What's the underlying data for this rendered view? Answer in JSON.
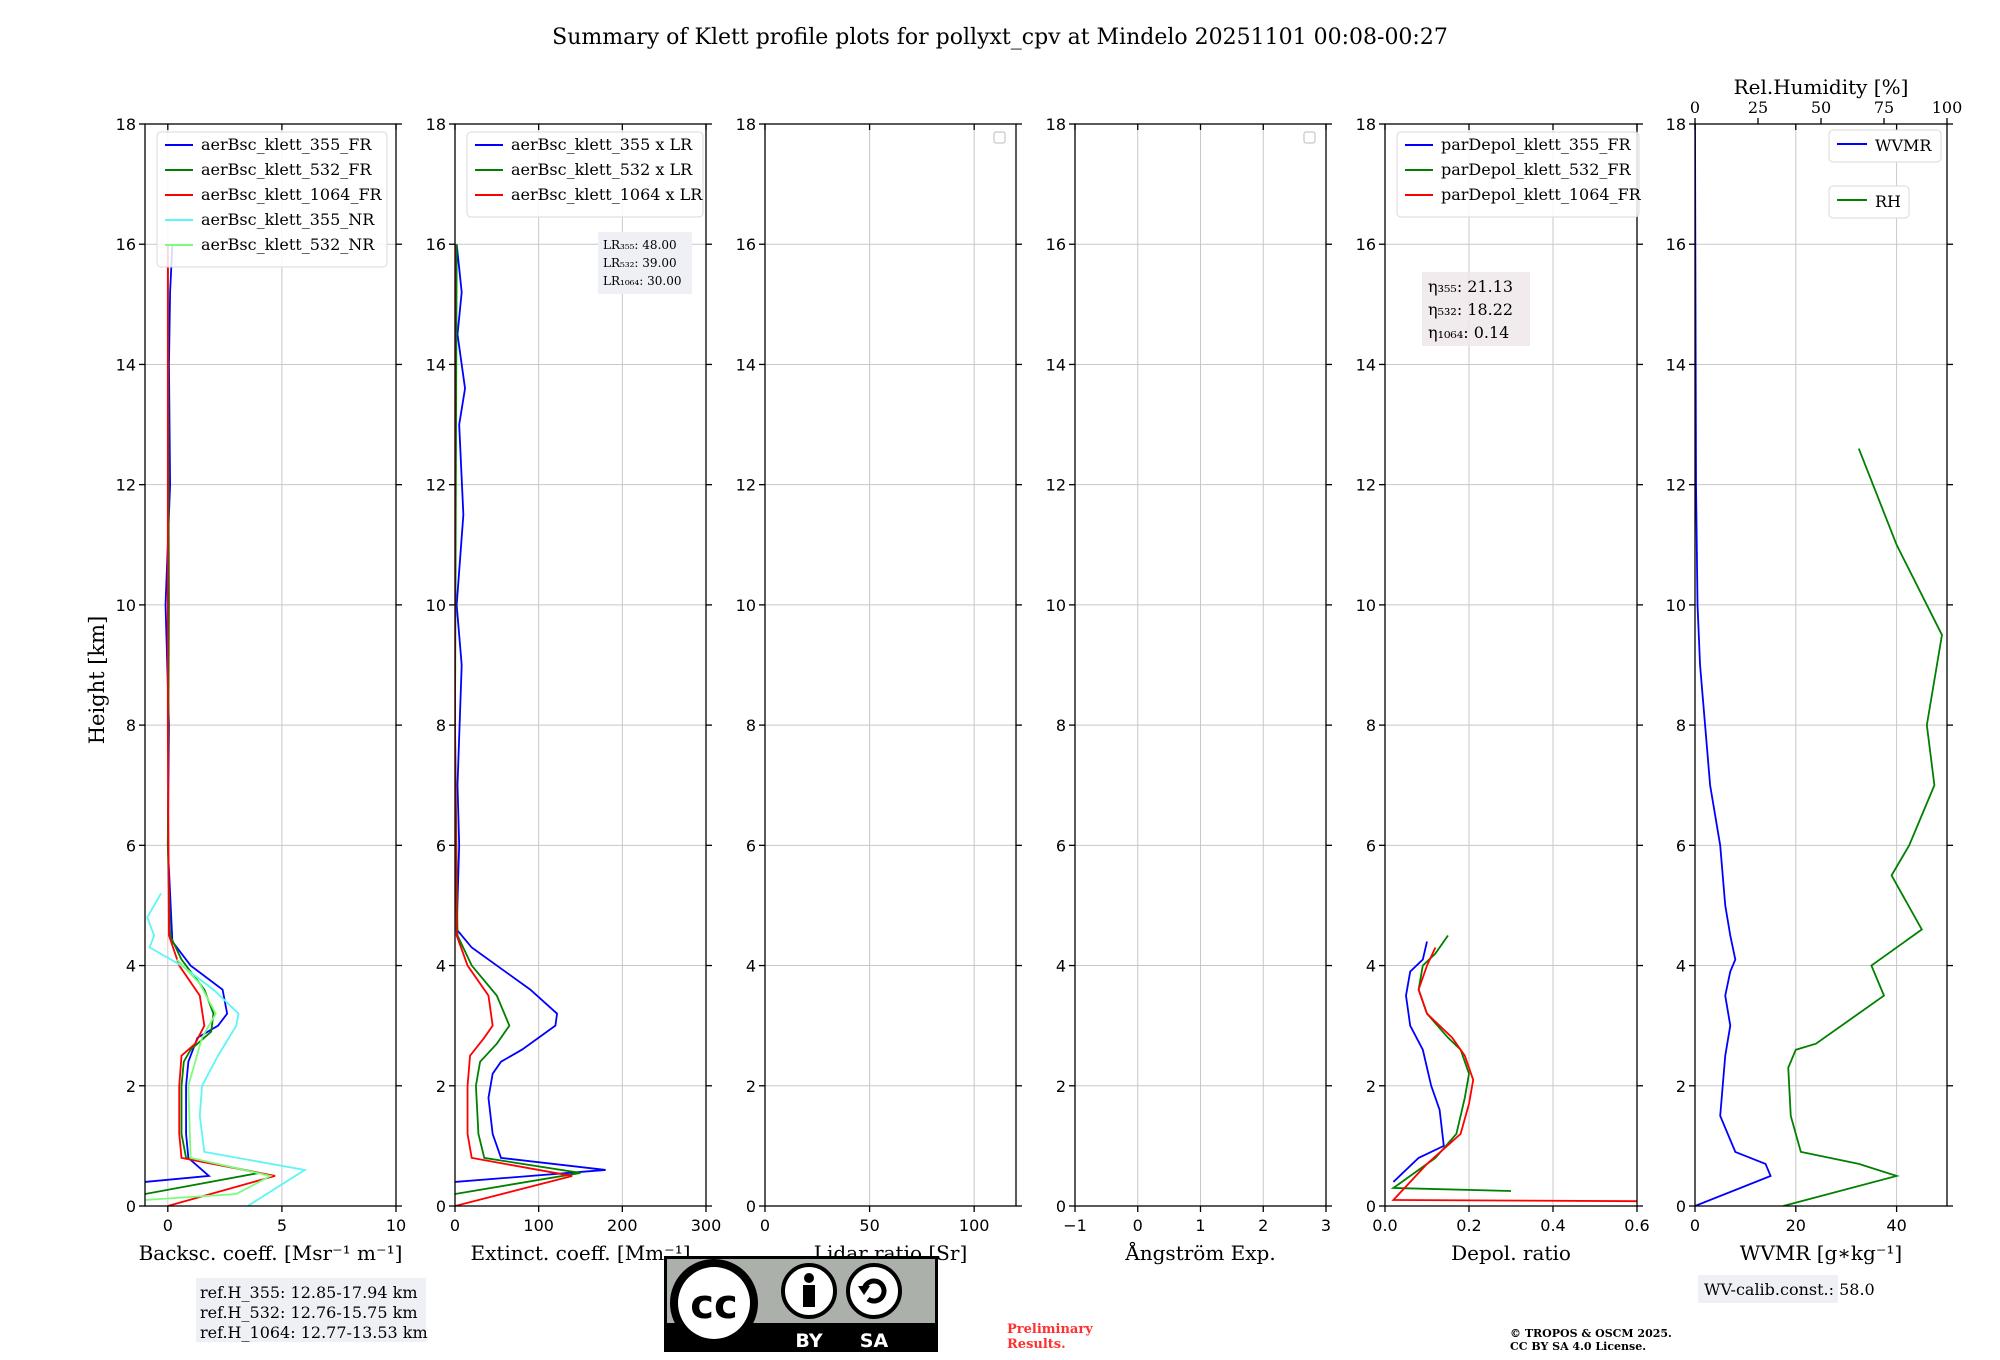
{
  "title": "Summary of Klett profile plots for pollyxt_cpv at Mindelo 20251101 00:08-00:27",
  "ylabel": "Height [km]",
  "colors": {
    "b355": "#0000ff",
    "g532": "#008000",
    "r1064": "#ff0000",
    "c355nr": "#5ff5f5",
    "l532nr": "#7cfc7c",
    "grid": "#c8c8c8"
  },
  "chart_data": [
    {
      "id": "backscatter",
      "type": "line",
      "xlabel": "Backsc. coeff. [Msr⁻¹ m⁻¹]",
      "xlim": [
        -1,
        10
      ],
      "xticks": [
        0,
        5,
        10
      ],
      "ylim": [
        0,
        18
      ],
      "yticks": [
        0,
        2,
        4,
        6,
        8,
        10,
        12,
        14,
        16,
        18
      ],
      "legend": [
        "aerBsc_klett_355_FR",
        "aerBsc_klett_532_FR",
        "aerBsc_klett_1064_FR",
        "aerBsc_klett_355_NR",
        "aerBsc_klett_532_NR"
      ],
      "series": [
        {
          "name": "aerBsc_klett_355_FR",
          "color": "#0000ff",
          "x": [
            -1,
            1.8,
            0.9,
            0.8,
            0.8,
            0.9,
            1.1,
            1.3,
            2.2,
            2.6,
            2.4,
            1.0,
            0.2,
            0,
            0.05,
            -0.1,
            0.1,
            0.05,
            0.1,
            0.2
          ],
          "y": [
            0.4,
            0.5,
            0.8,
            1.2,
            2.0,
            2.4,
            2.6,
            2.8,
            3.0,
            3.2,
            3.6,
            4.0,
            4.4,
            6,
            8,
            10,
            12,
            14,
            15.2,
            16
          ]
        },
        {
          "name": "aerBsc_klett_532_FR",
          "color": "#008000",
          "x": [
            -1,
            4.0,
            0.8,
            0.6,
            0.6,
            0.7,
            1.0,
            1.9,
            2.0,
            1.6,
            0.6,
            0.1,
            0,
            0.05,
            0
          ],
          "y": [
            0.2,
            0.55,
            0.8,
            1.2,
            2.0,
            2.4,
            2.6,
            2.9,
            3.2,
            3.6,
            4.1,
            4.5,
            6,
            10,
            16
          ]
        },
        {
          "name": "aerBsc_klett_1064_FR",
          "color": "#ff0000",
          "x": [
            0,
            4.7,
            0.6,
            0.5,
            0.5,
            0.6,
            1.2,
            1.6,
            1.4,
            0.5,
            0.05,
            0,
            0
          ],
          "y": [
            0,
            0.5,
            0.8,
            1.2,
            2.0,
            2.5,
            2.7,
            3.0,
            3.5,
            4.0,
            4.5,
            8,
            16
          ]
        },
        {
          "name": "aerBsc_klett_355_NR",
          "color": "#5ff5f5",
          "x": [
            3.5,
            6.0,
            1.6,
            1.4,
            1.5,
            2.2,
            3.0,
            3.1,
            2.0,
            0.6,
            -0.8,
            -0.6,
            -0.9,
            -0.6,
            -0.3
          ],
          "y": [
            0,
            0.6,
            0.9,
            1.5,
            2.0,
            2.5,
            3.0,
            3.2,
            3.6,
            4.0,
            4.3,
            4.5,
            4.8,
            5.0,
            5.2
          ]
        },
        {
          "name": "aerBsc_klett_532_NR",
          "color": "#7cfc7c",
          "x": [
            -1,
            3.0,
            4.5,
            1.0,
            0.9,
            1.5,
            2.1,
            1.4,
            0.4
          ],
          "y": [
            0.1,
            0.2,
            0.5,
            0.8,
            2.0,
            2.8,
            3.2,
            3.7,
            4.1
          ]
        }
      ]
    },
    {
      "id": "extinction",
      "type": "line",
      "xlabel": "Extinct. coeff. [Mm⁻¹]",
      "xlim": [
        0,
        300
      ],
      "xticks": [
        0,
        100,
        200,
        300
      ],
      "ylim": [
        0,
        18
      ],
      "yticks": [
        0,
        2,
        4,
        6,
        8,
        10,
        12,
        14,
        16,
        18
      ],
      "legend": [
        "aerBsc_klett_355 x LR",
        "aerBsc_klett_532 x LR",
        "aerBsc_klett_1064 x LR"
      ],
      "annotation": [
        "LR₃₅₅: 48.00",
        "LR₅₃₂: 39.00",
        "LR₁₀₆₄: 30.00"
      ],
      "series": [
        {
          "name": "aerBsc_klett_355 x LR",
          "color": "#0000ff",
          "x": [
            0,
            180,
            55,
            45,
            40,
            45,
            55,
            80,
            120,
            122,
            90,
            60,
            20,
            2,
            5,
            3,
            8,
            2,
            10,
            5,
            12,
            3,
            8,
            2
          ],
          "y": [
            0.4,
            0.6,
            0.8,
            1.2,
            1.8,
            2.2,
            2.4,
            2.6,
            3.0,
            3.2,
            3.6,
            3.9,
            4.3,
            4.6,
            6,
            7,
            9,
            10,
            11.5,
            13,
            13.6,
            14.5,
            15.2,
            16
          ]
        },
        {
          "name": "aerBsc_klett_532 x LR",
          "color": "#008000",
          "x": [
            0,
            150,
            35,
            28,
            25,
            30,
            50,
            65,
            50,
            20,
            3,
            0,
            2
          ],
          "y": [
            0.2,
            0.55,
            0.8,
            1.2,
            2.0,
            2.4,
            2.7,
            3.0,
            3.5,
            4.0,
            4.5,
            8,
            16
          ]
        },
        {
          "name": "aerBsc_klett_1064 x LR",
          "color": "#ff0000",
          "x": [
            0,
            140,
            20,
            15,
            15,
            18,
            35,
            45,
            40,
            15,
            2,
            0,
            0
          ],
          "y": [
            0,
            0.5,
            0.8,
            1.2,
            2.0,
            2.5,
            2.8,
            3.0,
            3.5,
            4.0,
            4.5,
            8,
            16
          ]
        }
      ]
    },
    {
      "id": "lidar_ratio",
      "type": "line",
      "xlabel": "Lidar ratio [Sr]",
      "xlim": [
        0,
        120
      ],
      "xticks": [
        0,
        50,
        100
      ],
      "ylim": [
        0,
        18
      ],
      "yticks": [
        0,
        2,
        4,
        6,
        8,
        10,
        12,
        14,
        16,
        18
      ],
      "series": []
    },
    {
      "id": "angstrom",
      "type": "line",
      "xlabel": "Ångström Exp.",
      "xlim": [
        -1,
        3
      ],
      "xticks": [
        -1,
        0,
        1,
        2,
        3
      ],
      "ylim": [
        0,
        18
      ],
      "yticks": [
        0,
        2,
        4,
        6,
        8,
        10,
        12,
        14,
        16,
        18
      ],
      "series": []
    },
    {
      "id": "depol",
      "type": "line",
      "xlabel": "Depol. ratio",
      "xlim": [
        0,
        0.6
      ],
      "xticks": [
        0.0,
        0.2,
        0.4,
        0.6
      ],
      "ylim": [
        0,
        18
      ],
      "yticks": [
        0,
        2,
        4,
        6,
        8,
        10,
        12,
        14,
        16,
        18
      ],
      "legend": [
        "parDepol_klett_355_FR",
        "parDepol_klett_532_FR",
        "parDepol_klett_1064_FR"
      ],
      "annotation": [
        "η₃₅₅: 21.13",
        "η₅₃₂: 18.22",
        "η₁₀₆₄: 0.14"
      ],
      "series": [
        {
          "name": "parDepol_klett_355_FR",
          "color": "#0000ff",
          "x": [
            0.02,
            0.08,
            0.14,
            0.13,
            0.11,
            0.1,
            0.09,
            0.06,
            0.05,
            0.06,
            0.09,
            0.1
          ],
          "y": [
            0.4,
            0.8,
            1.0,
            1.6,
            2.0,
            2.3,
            2.6,
            3.0,
            3.5,
            3.9,
            4.1,
            4.4
          ]
        },
        {
          "name": "parDepol_klett_532_FR",
          "color": "#008000",
          "x": [
            0.3,
            0.02,
            0.12,
            0.17,
            0.19,
            0.2,
            0.18,
            0.15,
            0.1,
            0.08,
            0.09,
            0.12,
            0.15
          ],
          "y": [
            0.25,
            0.3,
            0.8,
            1.2,
            1.8,
            2.2,
            2.6,
            2.8,
            3.2,
            3.6,
            4.0,
            4.2,
            4.5
          ]
        },
        {
          "name": "parDepol_klett_1064_FR",
          "color": "#ff0000",
          "x": [
            0.6,
            0.02,
            0.1,
            0.18,
            0.2,
            0.21,
            0.19,
            0.16,
            0.1,
            0.08,
            0.1,
            0.12
          ],
          "y": [
            0.08,
            0.1,
            0.7,
            1.2,
            1.7,
            2.1,
            2.5,
            2.8,
            3.2,
            3.6,
            4.0,
            4.3
          ]
        }
      ]
    },
    {
      "id": "wvmr",
      "type": "line",
      "xlabel": "WVMR [g∗kg⁻¹]",
      "top_xlabel": "Rel.Humidity [%]",
      "xlim": [
        0,
        50
      ],
      "xticks": [
        0,
        20,
        40
      ],
      "top_xlim": [
        0,
        100
      ],
      "top_xticks": [
        0,
        25,
        50,
        75,
        100
      ],
      "ylim": [
        0,
        18
      ],
      "yticks": [
        0,
        2,
        4,
        6,
        8,
        10,
        12,
        14,
        16,
        18
      ],
      "legend_wvmr": "WVMR",
      "legend_rh": "RH",
      "annotation": "WV-calib.const.: 58.0",
      "series": [
        {
          "name": "WVMR",
          "color": "#0000ff",
          "x": [
            0,
            15,
            14,
            8,
            5,
            6,
            7,
            6,
            7,
            8,
            7,
            6,
            5,
            3,
            2,
            1,
            0.5,
            0.2,
            0
          ],
          "y": [
            0,
            0.5,
            0.7,
            0.9,
            1.5,
            2.5,
            3.0,
            3.5,
            3.9,
            4.1,
            4.5,
            5.0,
            6.0,
            7.0,
            8.0,
            9.0,
            10.0,
            12.0,
            18.0
          ]
        },
        {
          "name": "RH",
          "color": "#008000",
          "x_rh": [
            35,
            80,
            65,
            42,
            38,
            37,
            40,
            48,
            75,
            70,
            90,
            78,
            85,
            95,
            92,
            98,
            80,
            65
          ],
          "y": [
            0,
            0.5,
            0.7,
            0.9,
            1.5,
            2.3,
            2.6,
            2.7,
            3.5,
            4.0,
            4.6,
            5.5,
            6.0,
            7.0,
            8.0,
            9.5,
            11.0,
            12.6
          ]
        }
      ]
    }
  ],
  "notes": {
    "ref_h": [
      "ref.H_355: 12.85-17.94 km",
      "ref.H_532: 12.76-15.75 km",
      "ref.H_1064: 12.77-13.53 km"
    ],
    "preliminary": [
      "Preliminary",
      "Results."
    ],
    "copyright": [
      "© TROPOS & OSCM 2025.",
      "CC BY SA 4.0 License."
    ],
    "license_badge": {
      "by": "BY",
      "sa": "SA"
    }
  }
}
